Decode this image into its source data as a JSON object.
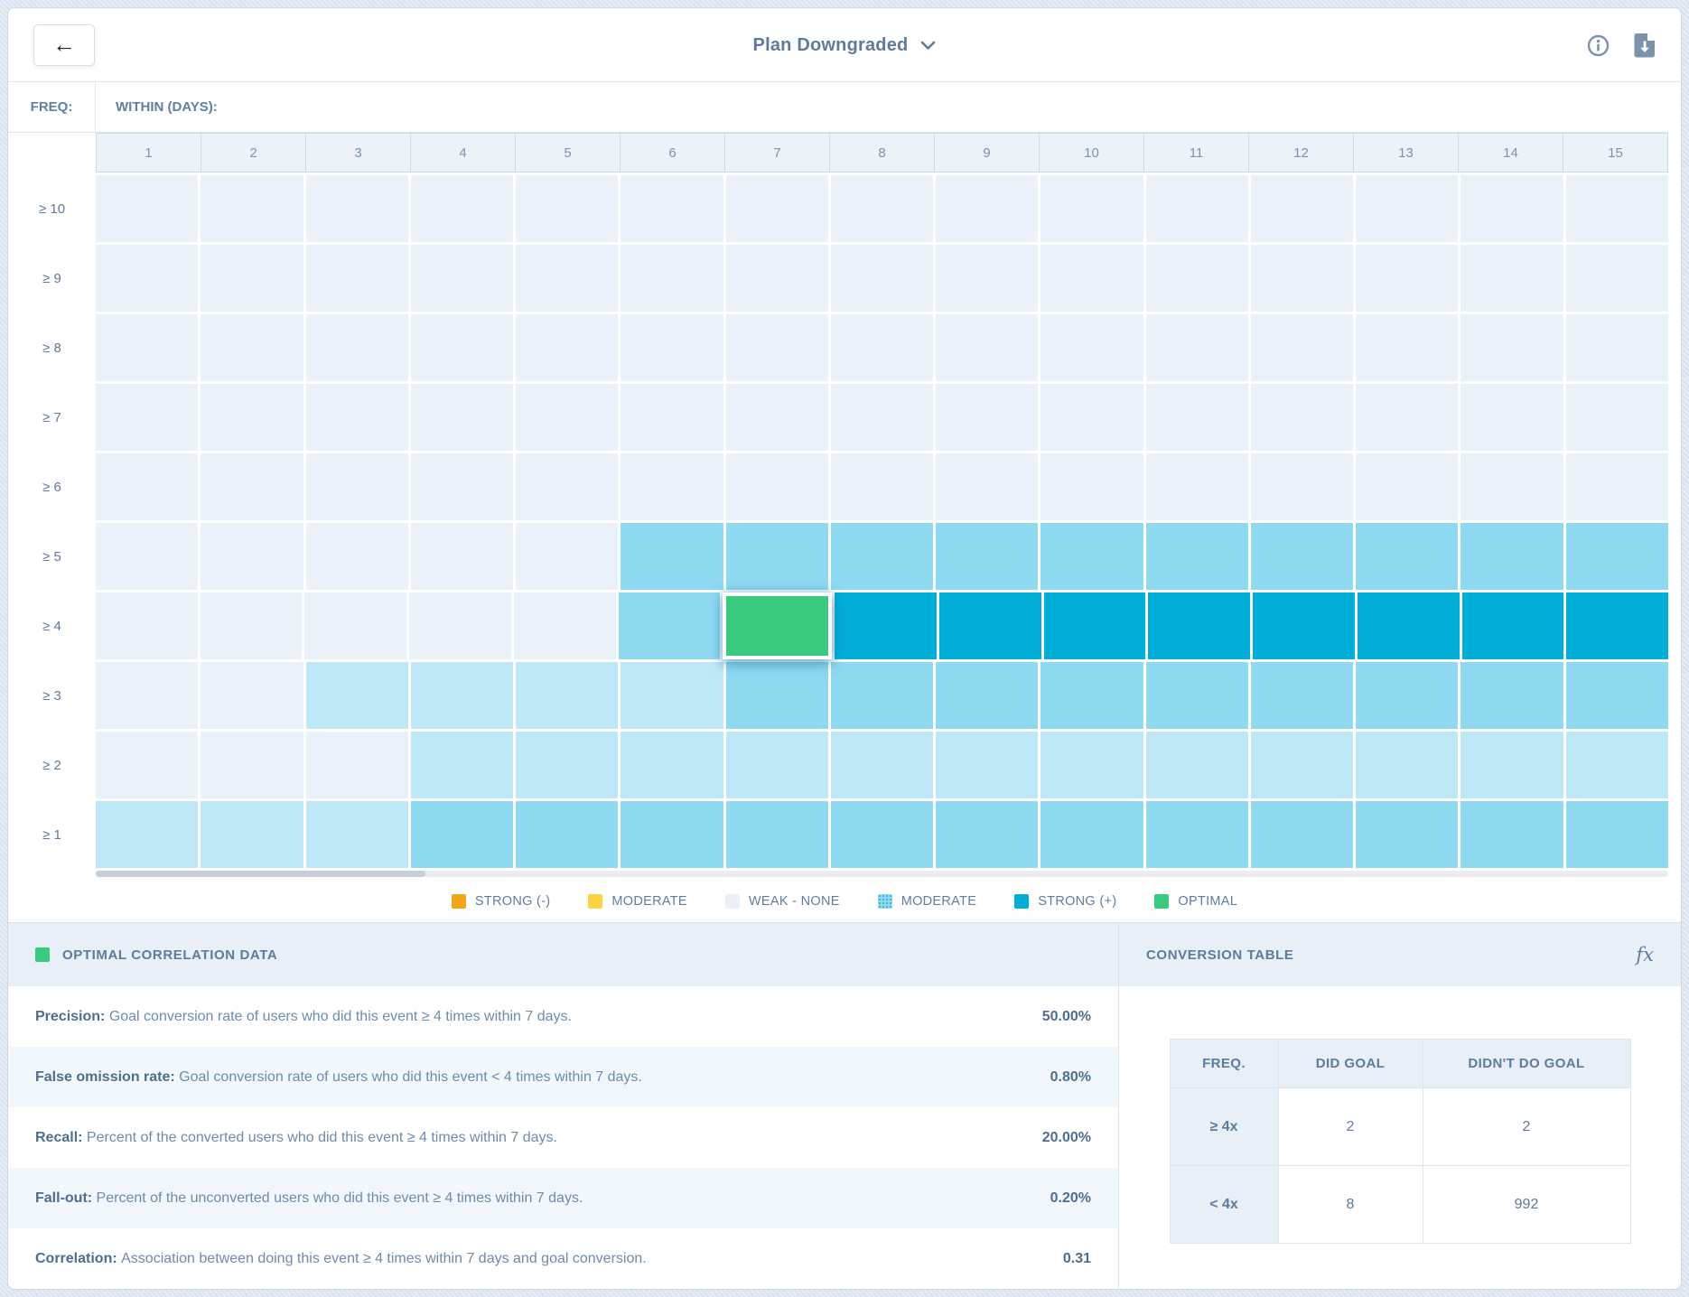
{
  "header": {
    "title": "Plan Downgraded",
    "back_label": "←"
  },
  "heatmap": {
    "freq_label": "FREQ:",
    "within_label": "WITHIN (DAYS):",
    "columns": [
      "1",
      "2",
      "3",
      "4",
      "5",
      "6",
      "7",
      "8",
      "9",
      "10",
      "11",
      "12",
      "13",
      "14",
      "15"
    ],
    "rows": [
      "≥ 10",
      "≥ 9",
      "≥ 8",
      "≥ 7",
      "≥ 6",
      "≥ 5",
      "≥ 4",
      "≥ 3",
      "≥ 2",
      "≥ 1"
    ]
  },
  "chart_data": {
    "type": "heatmap",
    "title": "Event frequency vs. days correlation heatmap",
    "xlabel": "WITHIN (DAYS):",
    "ylabel": "FREQ:",
    "x": [
      1,
      2,
      3,
      4,
      5,
      6,
      7,
      8,
      9,
      10,
      11,
      12,
      13,
      14,
      15
    ],
    "y": [
      "≥ 10",
      "≥ 9",
      "≥ 8",
      "≥ 7",
      "≥ 6",
      "≥ 5",
      "≥ 4",
      "≥ 3",
      "≥ 2",
      "≥ 1"
    ],
    "level_names": [
      "weak-none",
      "moderate-light",
      "moderate",
      "strong-positive",
      "optimal"
    ],
    "level_colors": [
      "#eaf1f8",
      "#bfe8f7",
      "#8fd9f1",
      "#00aed8",
      "#3bcb80"
    ],
    "matrix": [
      [
        0,
        0,
        0,
        0,
        0,
        0,
        0,
        0,
        0,
        0,
        0,
        0,
        0,
        0,
        0
      ],
      [
        0,
        0,
        0,
        0,
        0,
        0,
        0,
        0,
        0,
        0,
        0,
        0,
        0,
        0,
        0
      ],
      [
        0,
        0,
        0,
        0,
        0,
        0,
        0,
        0,
        0,
        0,
        0,
        0,
        0,
        0,
        0
      ],
      [
        0,
        0,
        0,
        0,
        0,
        0,
        0,
        0,
        0,
        0,
        0,
        0,
        0,
        0,
        0
      ],
      [
        0,
        0,
        0,
        0,
        0,
        0,
        0,
        0,
        0,
        0,
        0,
        0,
        0,
        0,
        0
      ],
      [
        0,
        0,
        0,
        0,
        0,
        2,
        2,
        2,
        2,
        2,
        2,
        2,
        2,
        2,
        2
      ],
      [
        0,
        0,
        0,
        0,
        0,
        2,
        4,
        3,
        3,
        3,
        3,
        3,
        3,
        3,
        3
      ],
      [
        0,
        0,
        1,
        1,
        1,
        1,
        2,
        2,
        2,
        2,
        2,
        2,
        2,
        2,
        2
      ],
      [
        0,
        0,
        0,
        1,
        1,
        1,
        1,
        1,
        1,
        1,
        1,
        1,
        1,
        1,
        1
      ],
      [
        1,
        1,
        1,
        2,
        2,
        2,
        2,
        2,
        2,
        2,
        2,
        2,
        2,
        2,
        2
      ]
    ],
    "selected_cell": {
      "row": "≥ 4",
      "column": 7,
      "level": "optimal"
    },
    "legend_position": "bottom",
    "grid": true
  },
  "legend": {
    "items": [
      {
        "label": "STRONG (-)",
        "color": "#f2a51a"
      },
      {
        "label": "MODERATE",
        "color": "#f8d53f"
      },
      {
        "label": "WEAK - NONE",
        "color": "#e9f0f8"
      },
      {
        "label": "MODERATE",
        "color": "#8fd9f1",
        "pattern": "dots"
      },
      {
        "label": "STRONG (+)",
        "color": "#00aed8"
      },
      {
        "label": "OPTIMAL",
        "color": "#3bcb80"
      }
    ]
  },
  "panels": {
    "optimal": {
      "title": "OPTIMAL CORRELATION DATA",
      "swatch_color": "#3bcb80",
      "rows": [
        {
          "label": "Precision:",
          "description": "Goal conversion rate of users who did this event ≥ 4 times within 7 days.",
          "value": "50.00%"
        },
        {
          "label": "False omission rate:",
          "description": "Goal conversion rate of users who did this event < 4 times within 7 days.",
          "value": "0.80%"
        },
        {
          "label": "Recall:",
          "description": "Percent of the converted users who did this event ≥ 4 times within 7 days.",
          "value": "20.00%"
        },
        {
          "label": "Fall-out:",
          "description": "Percent of the unconverted users who did this event ≥ 4 times within 7 days.",
          "value": "0.20%"
        },
        {
          "label": "Correlation:",
          "description": "Association between doing this event ≥ 4 times within 7 days and goal conversion.",
          "value": "0.31"
        }
      ]
    },
    "conversion": {
      "title": "CONVERSION TABLE",
      "fx_label": "fx",
      "columns": [
        "FREQ.",
        "DID GOAL",
        "DIDN'T DO GOAL"
      ],
      "rows": [
        {
          "freq": "≥ 4x",
          "did": "2",
          "didnt": "2"
        },
        {
          "freq": "< 4x",
          "did": "8",
          "didnt": "992"
        }
      ]
    }
  },
  "colors": {
    "accent_text": "#5d7b9c",
    "icon": "#7b92aa",
    "panel_header_bg": "#e9eff7",
    "stripe_bg": "#f2f7fc",
    "grid_header_bg": "#edf2f9",
    "grid_header_border": "#ccd9e7"
  }
}
